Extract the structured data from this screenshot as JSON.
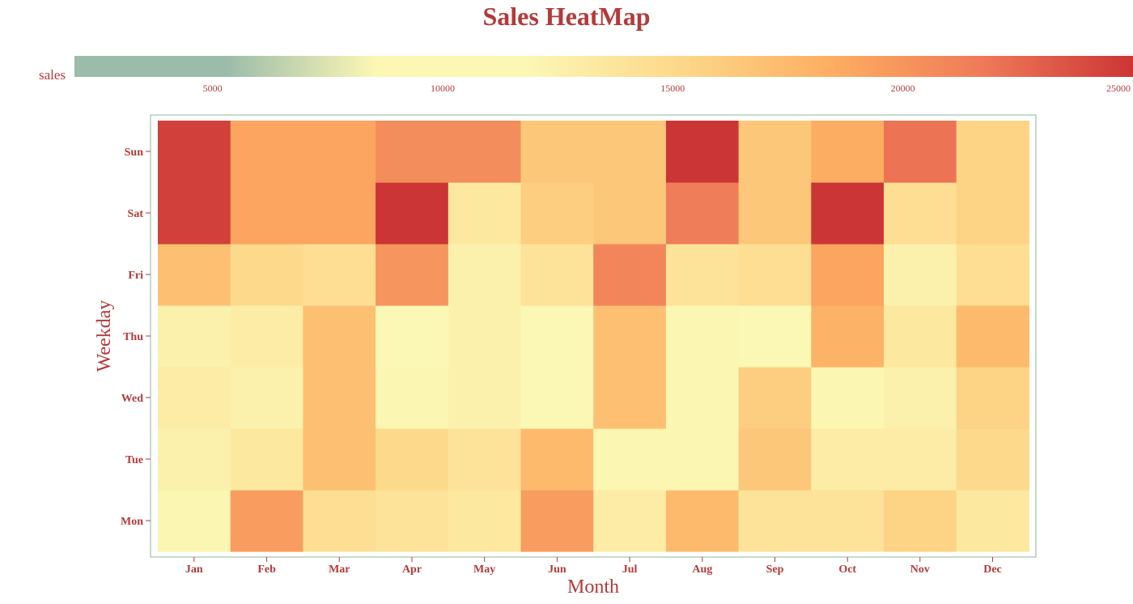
{
  "chart_data": {
    "type": "heatmap",
    "title": "Sales HeatMap",
    "xlabel": "Month",
    "ylabel": "Weekday",
    "x": [
      "Jan",
      "Feb",
      "Mar",
      "Apr",
      "May",
      "Jun",
      "Jul",
      "Aug",
      "Sep",
      "Oct",
      "Nov",
      "Dec"
    ],
    "y": [
      "Mon",
      "Tue",
      "Wed",
      "Thu",
      "Fri",
      "Sat",
      "Sun"
    ],
    "values": [
      [
        12000,
        19500,
        14500,
        14000,
        13500,
        19500,
        13000,
        17500,
        14000,
        14000,
        15500,
        13500
      ],
      [
        12500,
        13500,
        17000,
        15000,
        14000,
        17500,
        12000,
        12000,
        16500,
        13000,
        13000,
        15000
      ],
      [
        13000,
        12500,
        17000,
        12000,
        12500,
        11500,
        17000,
        12000,
        16000,
        12000,
        12500,
        15500
      ],
      [
        12500,
        13000,
        17000,
        11500,
        12500,
        11500,
        17000,
        12000,
        11500,
        18000,
        13500,
        17500
      ],
      [
        17000,
        15000,
        14500,
        20000,
        12500,
        14000,
        21000,
        14000,
        14500,
        19000,
        12500,
        14500
      ],
      [
        24500,
        19000,
        19000,
        26000,
        13500,
        16000,
        16500,
        21500,
        16500,
        25000,
        14500,
        15500
      ],
      [
        24500,
        19000,
        19000,
        20500,
        20500,
        16500,
        16500,
        26000,
        16500,
        18500,
        22000,
        15500
      ]
    ],
    "colorbar": {
      "label": "sales",
      "ticks": [
        5000,
        10000,
        15000,
        20000,
        25000
      ],
      "range": [
        2000,
        25000
      ],
      "colors": [
        "#9bbcaa",
        "#9bbcaa",
        "#fdf7b4",
        "#fbf7b4",
        "#fdd88a",
        "#fdae62",
        "#ef7a58",
        "#cc3535"
      ]
    },
    "legend": "top",
    "grid": false
  }
}
